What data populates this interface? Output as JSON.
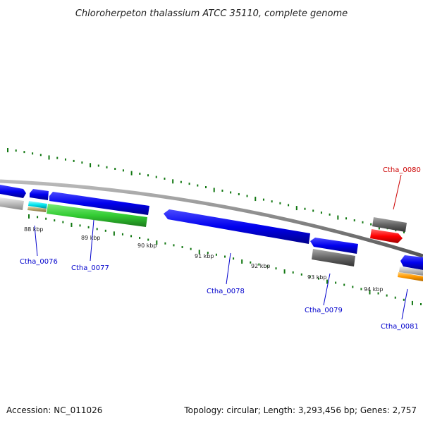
{
  "title": "Chloroherpeton thalassium ATCC 35110, complete genome",
  "footer": {
    "accession": "Accession: NC_011026",
    "stats": "Topology: circular; Length: 3,293,456 bp; Genes: 2,757"
  },
  "ticks": [
    {
      "label": "88 kbp"
    },
    {
      "label": "89 kbp"
    },
    {
      "label": "90 kbp"
    },
    {
      "label": "91 kbp"
    },
    {
      "label": "92 kbp"
    },
    {
      "label": "93 kbp"
    },
    {
      "label": "94 kbp"
    }
  ],
  "genes": [
    {
      "label": "Ctha_0076",
      "color": "#0000cc"
    },
    {
      "label": "Ctha_0077",
      "color": "#0000cc"
    },
    {
      "label": "Ctha_0078",
      "color": "#0000cc"
    },
    {
      "label": "Ctha_0079",
      "color": "#0000cc"
    },
    {
      "label": "Ctha_0080",
      "color": "#cc0000"
    },
    {
      "label": "Ctha_0081",
      "color": "#0000cc"
    }
  ],
  "colors": {
    "cds_blue": "#0000ee",
    "rna_red": "#ff0000",
    "green": "#33cc33",
    "cyan": "#00e5ee",
    "grey": "#666666",
    "backbone": "#888888",
    "tick_green": "#117711"
  }
}
